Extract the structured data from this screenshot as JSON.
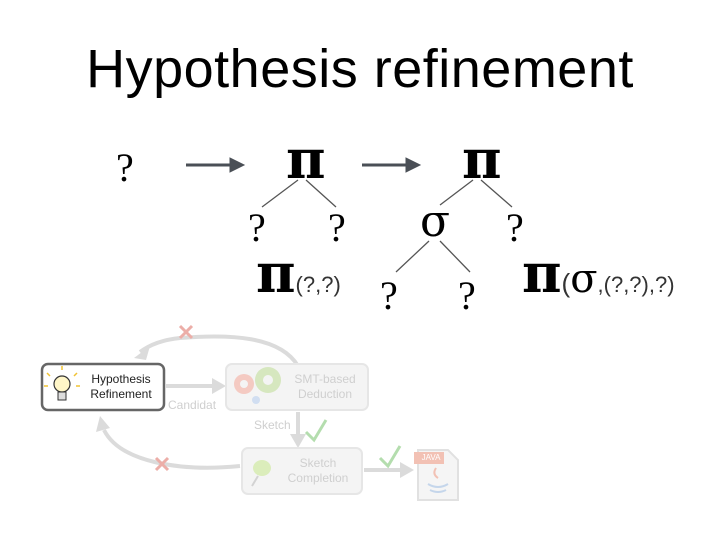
{
  "title": "Hypothesis refinement",
  "tree": {
    "q0": "?",
    "pi1": "π",
    "pi1_left": "?",
    "pi1_right": "?",
    "pi1_formula_sym": "π",
    "pi1_formula_args": "(?,?)",
    "pi2": "π",
    "sigma": "σ",
    "pi2_right": "?",
    "sigma_left": "?",
    "sigma_right": "?",
    "pi2_formula_pi": "π",
    "pi2_formula_paren": "(",
    "pi2_formula_sigma": "σ",
    "pi2_formula_args": ",(?,?),?)"
  },
  "flow": {
    "hypothesis_line1": "Hypothesis",
    "hypothesis_line2": "Refinement",
    "smt_line1": "SMT-based",
    "smt_line2": "Deduction",
    "candidate_label": "Candidat",
    "sketch_label": "Sketch",
    "completion_line1": "Sketch",
    "completion_line2": "Completion",
    "java_label": "JAVA"
  }
}
